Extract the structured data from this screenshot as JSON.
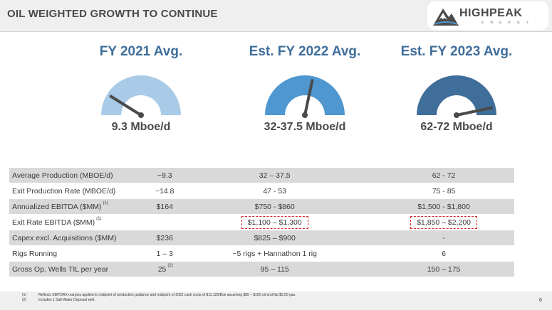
{
  "header": {
    "title": "OIL WEIGHTED GROWTH TO CONTINUE",
    "logo_main": "HIGHPEAK",
    "logo_sub": "ENERGY"
  },
  "gauges": [
    {
      "title": "FY 2021 Avg.",
      "value": "9.3 Mboe/d",
      "color": "#a9cbe7",
      "needle_deg": 148
    },
    {
      "title": "Est. FY 2022 Avg.",
      "value": "32-37.5 Mboe/d",
      "color": "#4f97d0",
      "needle_deg": 78
    },
    {
      "title": "Est. FY 2023 Avg.",
      "value": "62-72 Mboe/d",
      "color": "#3f6e9b",
      "needle_deg": 12
    }
  ],
  "table": {
    "rows": [
      {
        "label": "Average Production (MBOE/d)",
        "sup": "",
        "c1": "~9.3",
        "c1_sup": "",
        "c2": "32 – 37.5",
        "c3": "62 - 72",
        "shaded": true,
        "boxed": false
      },
      {
        "label": "Exit Production Rate (MBOE/d)",
        "sup": "",
        "c1": "~14.8",
        "c1_sup": "",
        "c2": "47 - 53",
        "c3": "75 - 85",
        "shaded": false,
        "boxed": false
      },
      {
        "label": "Annualized EBITDA ($MM)",
        "sup": "(1)",
        "c1": "$164",
        "c1_sup": "",
        "c2": "$750 - $860",
        "c3": "$1,500 - $1,800",
        "shaded": true,
        "boxed": false
      },
      {
        "label": "Exit Rate EBITDA ($MM)",
        "sup": "(1)",
        "c1": "",
        "c1_sup": "",
        "c2": "$1,100 – $1,300",
        "c3": "$1,850 – $2,200",
        "shaded": false,
        "boxed": true
      },
      {
        "label": "Capex excl. Acquisitions ($MM)",
        "sup": "",
        "c1": "$236",
        "c1_sup": "",
        "c2": "$825 – $900",
        "c3": "-",
        "shaded": true,
        "boxed": false
      },
      {
        "label": "Rigs Running",
        "sup": "",
        "c1": "1 – 3",
        "c1_sup": "",
        "c2": "~5 rigs + Hannathon 1 rig",
        "c3": "6",
        "shaded": false,
        "boxed": false
      },
      {
        "label": "Gross Op. Wells TIL per year",
        "sup": "",
        "c1": "25",
        "c1_sup": "(2)",
        "c2": "95 – 115",
        "c3": "150 – 175",
        "shaded": true,
        "boxed": false
      }
    ]
  },
  "footnotes": [
    {
      "num": "(1)",
      "text": "Reflects EBITDAX margins applied to midpoint of production guidance and midpoint of 2022 cash costs of $11.125/Boe assuming $85 – $100 oil and flat $5.00 gas."
    },
    {
      "num": "(2)",
      "text": "Includes 1 Salt-Water Disposal well."
    }
  ],
  "page_number": "6"
}
